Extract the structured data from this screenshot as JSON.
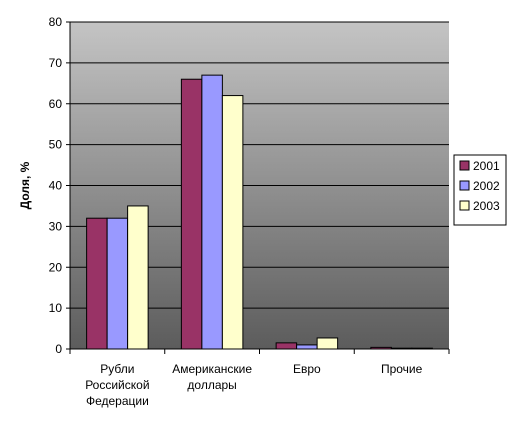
{
  "chart_data": {
    "type": "bar",
    "title": "",
    "xlabel": "",
    "ylabel": "Доля, %",
    "ylim": [
      0,
      80
    ],
    "ytick_step": 10,
    "grid": true,
    "legend_position": "right",
    "categories": [
      [
        "Рубли",
        "Российской",
        "Федерации"
      ],
      [
        "Американские",
        "доллары"
      ],
      [
        "Евро"
      ],
      [
        "Прочие"
      ]
    ],
    "series": [
      {
        "name": "2001",
        "color": "#993366",
        "values": [
          32,
          66,
          1.5,
          0.4
        ]
      },
      {
        "name": "2002",
        "color": "#9999FF",
        "values": [
          32,
          67,
          1.0,
          0.2
        ]
      },
      {
        "name": "2003",
        "color": "#FFFFCC",
        "values": [
          35,
          62,
          2.7,
          0.2
        ]
      }
    ]
  }
}
